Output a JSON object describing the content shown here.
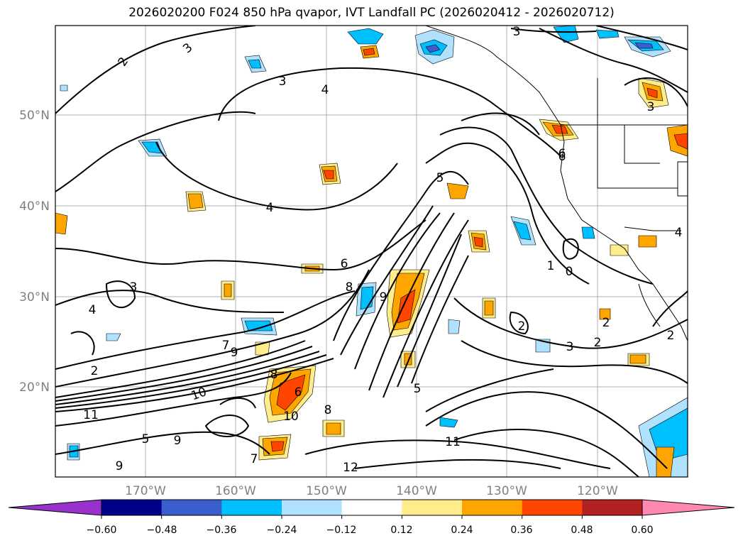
{
  "title": "2026020200 F024 850 hPa qvapor, IVT Landfall PC (2026020412 - 2026020712)",
  "map": {
    "lat_labels": [
      "50°N",
      "40°N",
      "30°N",
      "20°N"
    ],
    "lon_labels": [
      "170°W",
      "160°W",
      "150°W",
      "140°W",
      "130°W",
      "120°W"
    ],
    "contour_labels": [
      "2",
      "3",
      "3",
      "3",
      "4",
      "4",
      "4",
      "5",
      "6",
      "6",
      "7",
      "8",
      "8",
      "9",
      "9",
      "10",
      "10",
      "11",
      "11",
      "12",
      "9",
      "9",
      "7",
      "6",
      "5",
      "3",
      "2",
      "2",
      "3",
      "2",
      "1",
      "0",
      "4",
      "6",
      "8",
      "2",
      "3",
      "2",
      "5"
    ]
  },
  "colorbar": {
    "ticks": [
      "−0.60",
      "−0.48",
      "−0.36",
      "−0.24",
      "−0.12",
      "0.12",
      "0.24",
      "0.36",
      "0.48",
      "0.60"
    ],
    "colors": [
      "#9932cc",
      "#00008b",
      "#3a5fcd",
      "#00bfff",
      "#b0e2ff",
      "#ffffff",
      "#ffec8b",
      "#ffa500",
      "#ff4500",
      "#b22222",
      "#ff88b0"
    ]
  }
}
